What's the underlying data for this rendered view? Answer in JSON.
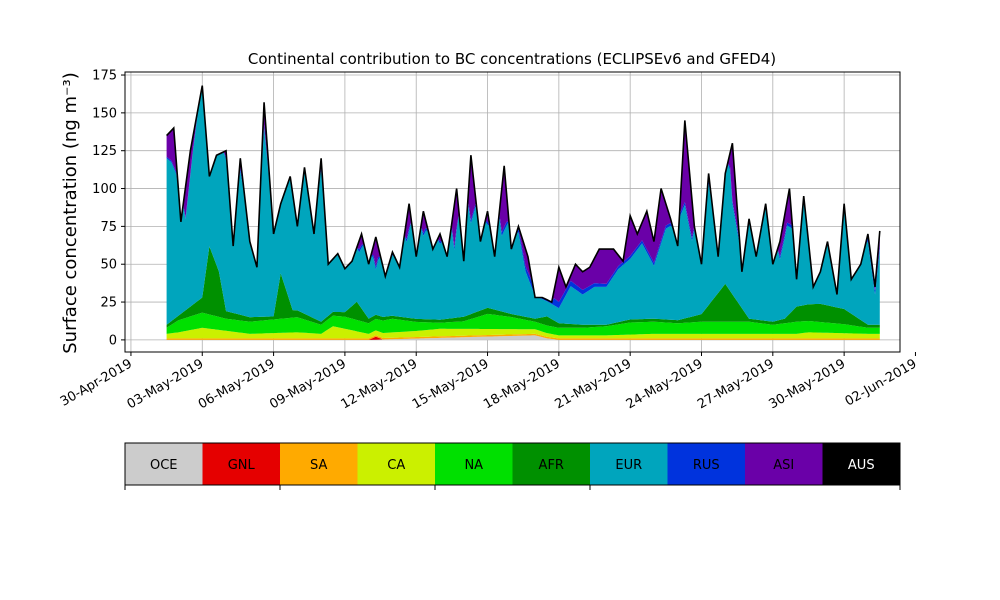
{
  "chart_data": {
    "type": "area",
    "title": "Continental contribution to BC concentrations (ECLIPSEv6 and GFED4)",
    "ylabel": "Surface concentration (ng m⁻³)",
    "xlabel": "",
    "ylim": [
      -8,
      177
    ],
    "yticks": [
      0,
      25,
      50,
      75,
      100,
      125,
      150,
      175
    ],
    "xlim": [
      -0.25,
      32.35
    ],
    "xticks": [
      {
        "day": 0,
        "label": "30-Apr-2019"
      },
      {
        "day": 3,
        "label": "03-May-2019"
      },
      {
        "day": 6,
        "label": "06-May-2019"
      },
      {
        "day": 9,
        "label": "09-May-2019"
      },
      {
        "day": 12,
        "label": "12-May-2019"
      },
      {
        "day": 15,
        "label": "15-May-2019"
      },
      {
        "day": 18,
        "label": "18-May-2019"
      },
      {
        "day": 21,
        "label": "21-May-2019"
      },
      {
        "day": 24,
        "label": "24-May-2019"
      },
      {
        "day": 27,
        "label": "27-May-2019"
      },
      {
        "day": 30,
        "label": "30-May-2019"
      },
      {
        "day": 33,
        "label": "02-Jun-2019"
      }
    ],
    "grid": true,
    "stacked": true,
    "x_days_from": "30-Apr-2019",
    "series": [
      {
        "name": "OCE",
        "color": "#cccccc",
        "x": [
          1.5,
          5,
          10,
          14.5,
          17,
          17.5,
          18,
          22,
          26,
          30,
          31.5
        ],
        "values": [
          0,
          0,
          0,
          2,
          3,
          1,
          0,
          0,
          0,
          0,
          0
        ]
      },
      {
        "name": "GNL",
        "color": "#e50000",
        "x": [
          1.5,
          8,
          10,
          10.3,
          10.6,
          12,
          18,
          24,
          31.5
        ],
        "values": [
          0,
          0,
          0,
          2,
          0,
          0,
          0,
          0,
          0
        ]
      },
      {
        "name": "SA",
        "color": "#ffaa00",
        "x": [
          1.5,
          5,
          10,
          16,
          20,
          25,
          31.5
        ],
        "values": [
          1,
          1,
          1,
          1,
          1,
          1,
          1
        ]
      },
      {
        "name": "CA",
        "color": "#cbf000",
        "x": [
          1.5,
          2,
          3,
          5,
          7,
          8,
          8.5,
          10,
          12,
          13,
          15,
          17,
          18,
          20,
          22,
          25,
          27,
          28,
          28.5,
          31,
          31.5
        ],
        "values": [
          3,
          4,
          7,
          3,
          4,
          3,
          8,
          3,
          4,
          5,
          4,
          3,
          2,
          2,
          3,
          3,
          3,
          3,
          4,
          3,
          3
        ]
      },
      {
        "name": "NA",
        "color": "#00e000",
        "x": [
          1.5,
          2,
          3,
          4,
          5,
          6,
          7,
          8,
          9,
          10,
          11,
          12,
          13,
          14,
          15,
          16,
          17,
          18,
          19,
          20,
          21,
          22,
          23,
          24,
          25,
          26,
          27,
          28,
          29,
          30,
          31,
          31.5
        ],
        "values": [
          4,
          8,
          10,
          8,
          8,
          9,
          10,
          6,
          8,
          7,
          9,
          6,
          4,
          5,
          10,
          8,
          5,
          5,
          5,
          6,
          8,
          8,
          7,
          8,
          8,
          8,
          6,
          8,
          7,
          6,
          4,
          4
        ]
      },
      {
        "name": "AFR",
        "color": "#009000",
        "x": [
          1.5,
          2,
          3,
          3.3,
          3.7,
          4,
          5,
          6,
          6.3,
          6.8,
          8,
          9,
          9.5,
          10,
          11,
          12,
          13,
          14,
          15,
          16,
          17,
          17.5,
          18,
          19,
          20,
          21,
          22,
          23,
          24,
          25,
          26,
          27,
          27.5,
          28,
          29,
          30,
          31,
          31.5
        ],
        "values": [
          2,
          3,
          10,
          45,
          30,
          5,
          3,
          2,
          30,
          5,
          2,
          3,
          12,
          3,
          2,
          2,
          2,
          3,
          4,
          2,
          2,
          6,
          3,
          2,
          1,
          2,
          2,
          2,
          5,
          25,
          2,
          2,
          3,
          10,
          12,
          10,
          2,
          2
        ]
      },
      {
        "name": "EUR",
        "color": "#00a5bd",
        "x": [
          1.5,
          1.7,
          2,
          2.3,
          2.6,
          3,
          3.3,
          3.6,
          4,
          4.3,
          4.6,
          5,
          5.3,
          5.6,
          6,
          6.3,
          6.6,
          7,
          7.3,
          7.6,
          8,
          8.3,
          8.6,
          9,
          9.3,
          9.6,
          10,
          10.3,
          10.6,
          11,
          11.3,
          11.6,
          12,
          12.3,
          12.6,
          13,
          13.3,
          13.6,
          14,
          14.3,
          14.6,
          15,
          15.3,
          15.6,
          16,
          16.3,
          16.6,
          17,
          17.5,
          18,
          18.5,
          19,
          19.5,
          20,
          20.5,
          21,
          21.5,
          22,
          22.5,
          23,
          23.3,
          23.6,
          24,
          24.3,
          24.6,
          25,
          25.3,
          25.6,
          26,
          26.3,
          26.6,
          27,
          27.3,
          27.6,
          28,
          28.3,
          28.6,
          29,
          29.3,
          29.6,
          30,
          30.3,
          30.6,
          31,
          31.3,
          31.5
        ],
        "values": [
          110,
          105,
          90,
          60,
          100,
          145,
          95,
          105,
          100,
          60,
          95,
          60,
          40,
          125,
          60,
          70,
          90,
          75,
          95,
          65,
          100,
          35,
          45,
          40,
          45,
          35,
          55,
          30,
          50,
          40,
          85,
          50,
          80,
          55,
          65,
          50,
          85,
          45,
          95,
          60,
          75,
          55,
          85,
          50,
          65,
          55,
          30,
          15,
          10,
          10,
          25,
          20,
          25,
          25,
          35,
          40,
          50,
          35,
          60,
          65,
          75,
          50,
          80,
          80,
          50,
          120,
          60,
          40,
          95,
          45,
          95,
          110,
          40,
          60,
          50,
          70,
          35,
          55,
          70,
          25,
          70,
          40,
          45,
          55,
          20,
          50
        ]
      },
      {
        "name": "RUS",
        "color": "#0033dd",
        "x": [
          1.5,
          5,
          10,
          15,
          16.5,
          17.5,
          18,
          20,
          25,
          28,
          29.5,
          30,
          31.5
        ],
        "values": [
          1,
          2,
          2,
          2,
          3,
          6,
          4,
          2,
          2,
          2,
          4,
          6,
          2
        ]
      },
      {
        "name": "ASI",
        "color": "#6a00a8",
        "x": [
          1.5,
          2,
          3,
          4,
          5,
          6,
          7,
          8,
          9,
          10,
          10.5,
          11,
          11.5,
          12,
          13,
          14,
          15,
          16,
          17,
          18,
          19,
          20,
          21,
          22,
          23,
          24,
          25,
          26,
          27,
          28,
          28.5,
          29,
          30,
          31,
          31.5
        ],
        "values": [
          4,
          10,
          12,
          12,
          8,
          8,
          10,
          8,
          12,
          8,
          10,
          12,
          10,
          15,
          12,
          10,
          12,
          10,
          5,
          2,
          2,
          2,
          3,
          4,
          5,
          8,
          10,
          8,
          12,
          10,
          15,
          15,
          10,
          8,
          5
        ]
      },
      {
        "name": "AUS",
        "color": "#000000",
        "x": [
          1.5,
          31.5
        ],
        "values": [
          0,
          0
        ]
      }
    ],
    "total": {
      "x": [
        1.5,
        1.8,
        2.1,
        2.5,
        3,
        3.3,
        3.6,
        4,
        4.3,
        4.6,
        5,
        5.3,
        5.6,
        6,
        6.3,
        6.7,
        7,
        7.3,
        7.7,
        8,
        8.3,
        8.7,
        9,
        9.3,
        9.7,
        10,
        10.3,
        10.7,
        11,
        11.3,
        11.7,
        12,
        12.3,
        12.7,
        13,
        13.3,
        13.7,
        14,
        14.3,
        14.7,
        15,
        15.3,
        15.7,
        16,
        16.3,
        16.7,
        17,
        17.3,
        17.7,
        18,
        18.3,
        18.7,
        19,
        19.3,
        19.7,
        20,
        20.3,
        20.7,
        21,
        21.3,
        21.7,
        22,
        22.3,
        22.7,
        23,
        23.3,
        23.7,
        24,
        24.3,
        24.7,
        25,
        25.3,
        25.7,
        26,
        26.3,
        26.7,
        27,
        27.3,
        27.7,
        28,
        28.3,
        28.7,
        29,
        29.3,
        29.7,
        30,
        30.3,
        30.7,
        31,
        31.3,
        31.5
      ],
      "values": [
        135,
        140,
        78,
        125,
        168,
        108,
        122,
        125,
        62,
        120,
        65,
        48,
        157,
        70,
        90,
        108,
        75,
        114,
        70,
        120,
        50,
        57,
        47,
        52,
        70,
        50,
        68,
        42,
        58,
        48,
        90,
        55,
        85,
        60,
        70,
        55,
        100,
        52,
        122,
        65,
        85,
        55,
        115,
        60,
        75,
        55,
        28,
        28,
        25,
        48,
        35,
        50,
        45,
        48,
        60,
        60,
        60,
        52,
        82,
        70,
        85,
        65,
        100,
        80,
        62,
        145,
        75,
        50,
        110,
        55,
        110,
        130,
        45,
        80,
        55,
        90,
        50,
        65,
        100,
        40,
        95,
        35,
        45,
        65,
        30,
        90,
        40,
        50,
        70,
        35,
        72
      ]
    }
  },
  "legend": {
    "items": [
      {
        "label": "OCE",
        "color": "#cccccc"
      },
      {
        "label": "GNL",
        "color": "#e50000"
      },
      {
        "label": "SA",
        "color": "#ffaa00"
      },
      {
        "label": "CA",
        "color": "#cbf000"
      },
      {
        "label": "NA",
        "color": "#00e000"
      },
      {
        "label": "AFR",
        "color": "#009000"
      },
      {
        "label": "EUR",
        "color": "#00a5bd"
      },
      {
        "label": "RUS",
        "color": "#0033dd"
      },
      {
        "label": "ASI",
        "color": "#6a00a8"
      },
      {
        "label": "AUS",
        "color": "#000000"
      }
    ]
  }
}
